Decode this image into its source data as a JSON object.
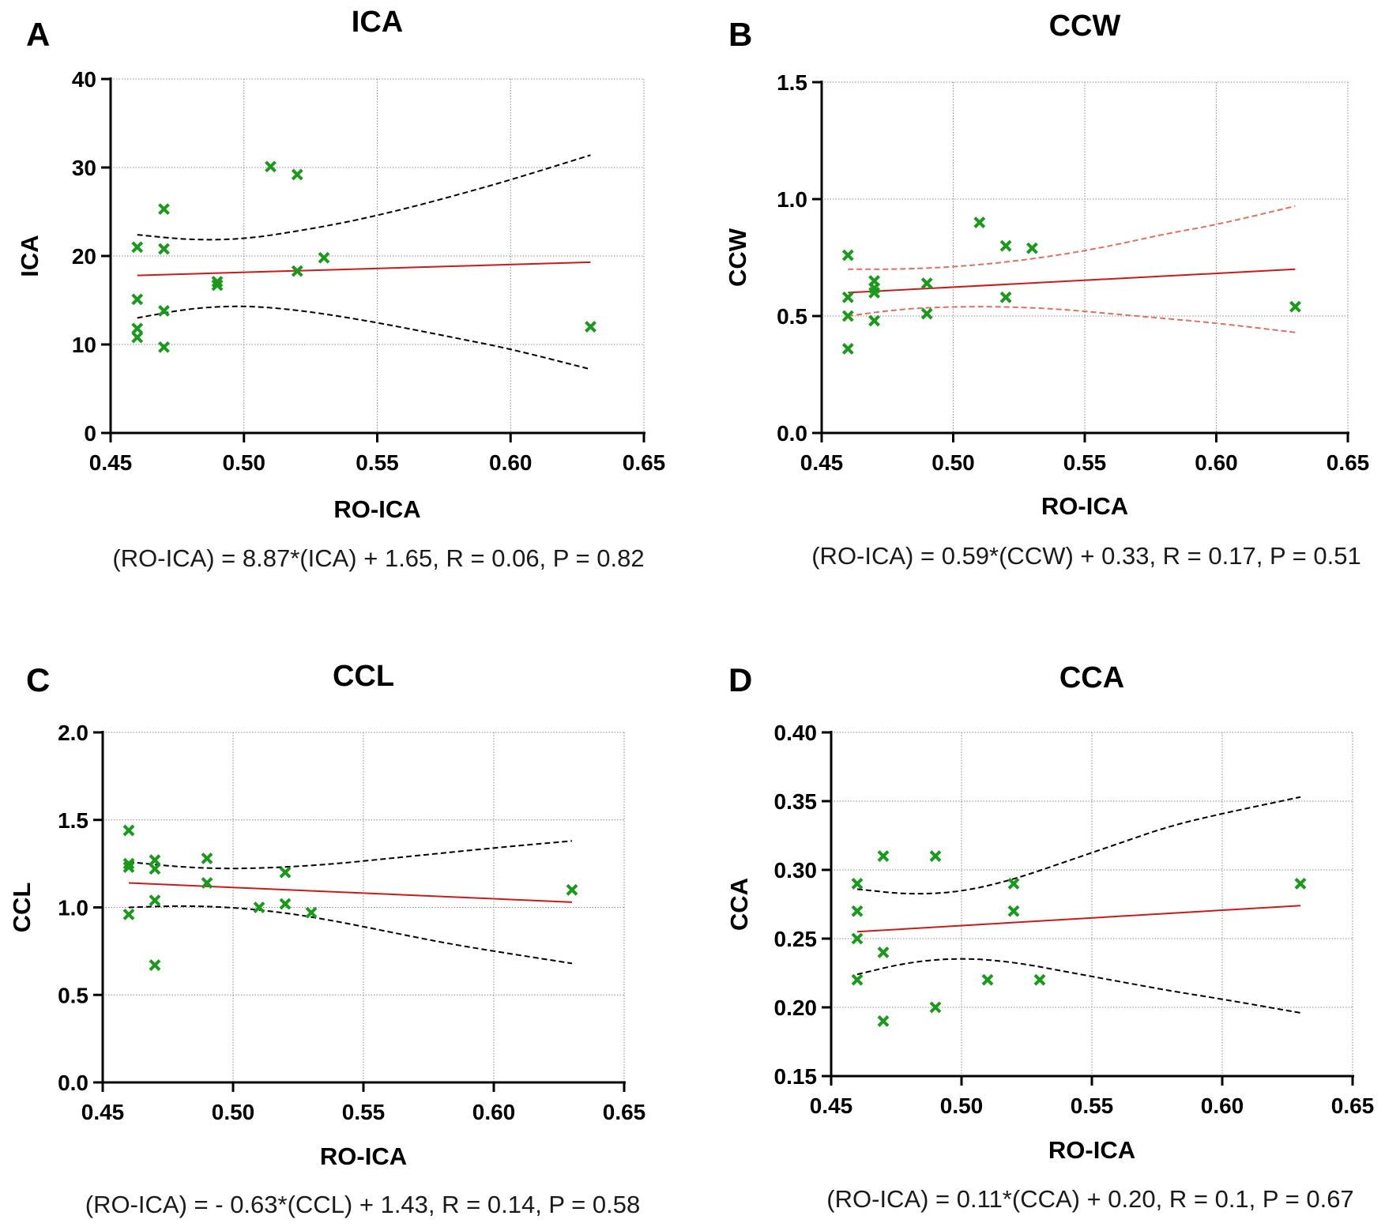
{
  "figure": {
    "colors": {
      "marker": "#1a9a1a",
      "fit": "#cc1a1a",
      "band_black": "#000000",
      "band_red": "#e07060",
      "grid": "#8a8a8a",
      "axis": "#000000"
    }
  },
  "chart_data": [
    {
      "panel": "A",
      "type": "scatter",
      "title": "ICA",
      "xlabel": "RO-ICA",
      "ylabel": "ICA",
      "xlim": [
        0.45,
        0.65
      ],
      "ylim": [
        0,
        40
      ],
      "xticks": [
        "0.45",
        "0.50",
        "0.55",
        "0.60",
        "0.65"
      ],
      "yticks": [
        "0",
        "10",
        "20",
        "30",
        "40"
      ],
      "grid": true,
      "points": [
        {
          "x": 0.46,
          "y": 21.0
        },
        {
          "x": 0.46,
          "y": 15.1
        },
        {
          "x": 0.46,
          "y": 11.8
        },
        {
          "x": 0.46,
          "y": 10.8
        },
        {
          "x": 0.47,
          "y": 25.3
        },
        {
          "x": 0.47,
          "y": 20.8
        },
        {
          "x": 0.47,
          "y": 13.8
        },
        {
          "x": 0.47,
          "y": 9.7
        },
        {
          "x": 0.49,
          "y": 17.1
        },
        {
          "x": 0.49,
          "y": 16.7
        },
        {
          "x": 0.51,
          "y": 30.1
        },
        {
          "x": 0.52,
          "y": 29.2
        },
        {
          "x": 0.52,
          "y": 18.3
        },
        {
          "x": 0.53,
          "y": 19.8
        },
        {
          "x": 0.63,
          "y": 12.0
        }
      ],
      "fit_line": {
        "x": [
          0.46,
          0.63
        ],
        "y": [
          17.8,
          19.3
        ]
      },
      "ci_upper": {
        "x": [
          0.46,
          0.48,
          0.5,
          0.52,
          0.54,
          0.56,
          0.58,
          0.6,
          0.63
        ],
        "y": [
          22.4,
          21.8,
          21.9,
          22.8,
          23.9,
          25.3,
          26.9,
          28.6,
          31.4
        ]
      },
      "ci_lower": {
        "x": [
          0.46,
          0.48,
          0.5,
          0.52,
          0.54,
          0.56,
          0.58,
          0.6,
          0.63
        ],
        "y": [
          13.0,
          14.1,
          14.4,
          13.9,
          13.0,
          11.9,
          10.7,
          9.5,
          7.2
        ]
      },
      "band_color": "black",
      "equation": "(RO-ICA) = 8.87*(ICA) + 1.65, R = 0.06, P = 0.82"
    },
    {
      "panel": "B",
      "type": "scatter",
      "title": "CCW",
      "xlabel": "RO-ICA",
      "ylabel": "CCW",
      "xlim": [
        0.45,
        0.65
      ],
      "ylim": [
        0,
        1.5
      ],
      "xticks": [
        "0.45",
        "0.50",
        "0.55",
        "0.60",
        "0.65"
      ],
      "yticks": [
        "0.0",
        "0.5",
        "1.0",
        "1.5"
      ],
      "grid": true,
      "points": [
        {
          "x": 0.46,
          "y": 0.76
        },
        {
          "x": 0.46,
          "y": 0.58
        },
        {
          "x": 0.46,
          "y": 0.5
        },
        {
          "x": 0.46,
          "y": 0.36
        },
        {
          "x": 0.47,
          "y": 0.65
        },
        {
          "x": 0.47,
          "y": 0.62
        },
        {
          "x": 0.47,
          "y": 0.6
        },
        {
          "x": 0.47,
          "y": 0.48
        },
        {
          "x": 0.49,
          "y": 0.64
        },
        {
          "x": 0.49,
          "y": 0.51
        },
        {
          "x": 0.51,
          "y": 0.9
        },
        {
          "x": 0.52,
          "y": 0.8
        },
        {
          "x": 0.52,
          "y": 0.58
        },
        {
          "x": 0.53,
          "y": 0.79
        },
        {
          "x": 0.63,
          "y": 0.54
        }
      ],
      "fit_line": {
        "x": [
          0.46,
          0.63
        ],
        "y": [
          0.6,
          0.7
        ]
      },
      "ci_upper": {
        "x": [
          0.46,
          0.48,
          0.5,
          0.52,
          0.54,
          0.56,
          0.58,
          0.6,
          0.63
        ],
        "y": [
          0.7,
          0.7,
          0.71,
          0.73,
          0.76,
          0.8,
          0.85,
          0.89,
          0.97
        ]
      },
      "ci_lower": {
        "x": [
          0.46,
          0.48,
          0.5,
          0.52,
          0.54,
          0.56,
          0.58,
          0.6,
          0.63
        ],
        "y": [
          0.5,
          0.53,
          0.54,
          0.54,
          0.53,
          0.51,
          0.49,
          0.47,
          0.43
        ]
      },
      "band_color": "red",
      "equation": "(RO-ICA) = 0.59*(CCW) + 0.33, R = 0.17, P = 0.51"
    },
    {
      "panel": "C",
      "type": "scatter",
      "title": "CCL",
      "xlabel": "RO-ICA",
      "ylabel": "CCL",
      "xlim": [
        0.45,
        0.65
      ],
      "ylim": [
        0,
        2.0
      ],
      "xticks": [
        "0.45",
        "0.50",
        "0.55",
        "0.60",
        "0.65"
      ],
      "yticks": [
        "0.0",
        "0.5",
        "1.0",
        "1.5",
        "2.0"
      ],
      "grid": true,
      "points": [
        {
          "x": 0.46,
          "y": 1.44
        },
        {
          "x": 0.46,
          "y": 1.25
        },
        {
          "x": 0.46,
          "y": 1.23
        },
        {
          "x": 0.46,
          "y": 0.96
        },
        {
          "x": 0.47,
          "y": 1.27
        },
        {
          "x": 0.47,
          "y": 1.22
        },
        {
          "x": 0.47,
          "y": 1.04
        },
        {
          "x": 0.47,
          "y": 0.67
        },
        {
          "x": 0.49,
          "y": 1.28
        },
        {
          "x": 0.49,
          "y": 1.14
        },
        {
          "x": 0.51,
          "y": 1.0
        },
        {
          "x": 0.52,
          "y": 1.2
        },
        {
          "x": 0.52,
          "y": 1.02
        },
        {
          "x": 0.53,
          "y": 0.97
        },
        {
          "x": 0.63,
          "y": 1.1
        }
      ],
      "fit_line": {
        "x": [
          0.46,
          0.63
        ],
        "y": [
          1.14,
          1.03
        ]
      },
      "ci_upper": {
        "x": [
          0.46,
          0.48,
          0.5,
          0.52,
          0.54,
          0.56,
          0.58,
          0.6,
          0.63
        ],
        "y": [
          1.26,
          1.23,
          1.22,
          1.23,
          1.25,
          1.28,
          1.31,
          1.34,
          1.38
        ]
      },
      "ci_lower": {
        "x": [
          0.46,
          0.48,
          0.5,
          0.52,
          0.54,
          0.56,
          0.58,
          0.6,
          0.63
        ],
        "y": [
          1.0,
          1.01,
          1.0,
          0.97,
          0.92,
          0.86,
          0.8,
          0.75,
          0.68
        ]
      },
      "band_color": "black",
      "equation": "(RO-ICA) = - 0.63*(CCL) + 1.43, R = 0.14, P = 0.58"
    },
    {
      "panel": "D",
      "type": "scatter",
      "title": "CCA",
      "xlabel": "RO-ICA",
      "ylabel": "CCA",
      "xlim": [
        0.45,
        0.65
      ],
      "ylim": [
        0.15,
        0.4
      ],
      "xticks": [
        "0.45",
        "0.50",
        "0.55",
        "0.60",
        "0.65"
      ],
      "yticks": [
        "0.15",
        "0.20",
        "0.25",
        "0.30",
        "0.35",
        "0.40"
      ],
      "grid": true,
      "points": [
        {
          "x": 0.46,
          "y": 0.29
        },
        {
          "x": 0.46,
          "y": 0.27
        },
        {
          "x": 0.46,
          "y": 0.25
        },
        {
          "x": 0.46,
          "y": 0.22
        },
        {
          "x": 0.47,
          "y": 0.31
        },
        {
          "x": 0.47,
          "y": 0.24
        },
        {
          "x": 0.47,
          "y": 0.19
        },
        {
          "x": 0.49,
          "y": 0.31
        },
        {
          "x": 0.49,
          "y": 0.2
        },
        {
          "x": 0.51,
          "y": 0.22
        },
        {
          "x": 0.52,
          "y": 0.29
        },
        {
          "x": 0.52,
          "y": 0.27
        },
        {
          "x": 0.53,
          "y": 0.22
        },
        {
          "x": 0.63,
          "y": 0.29
        }
      ],
      "fit_line": {
        "x": [
          0.46,
          0.63
        ],
        "y": [
          0.255,
          0.274
        ]
      },
      "ci_upper": {
        "x": [
          0.46,
          0.48,
          0.5,
          0.52,
          0.54,
          0.56,
          0.58,
          0.6,
          0.63
        ],
        "y": [
          0.286,
          0.282,
          0.284,
          0.293,
          0.306,
          0.319,
          0.332,
          0.341,
          0.353
        ]
      },
      "ci_lower": {
        "x": [
          0.46,
          0.48,
          0.5,
          0.52,
          0.54,
          0.56,
          0.58,
          0.6,
          0.63
        ],
        "y": [
          0.224,
          0.233,
          0.236,
          0.233,
          0.226,
          0.219,
          0.212,
          0.206,
          0.196
        ]
      },
      "band_color": "black",
      "equation": "(RO-ICA) = 0.11*(CCA) + 0.20, R = 0.1, P = 0.67"
    }
  ]
}
